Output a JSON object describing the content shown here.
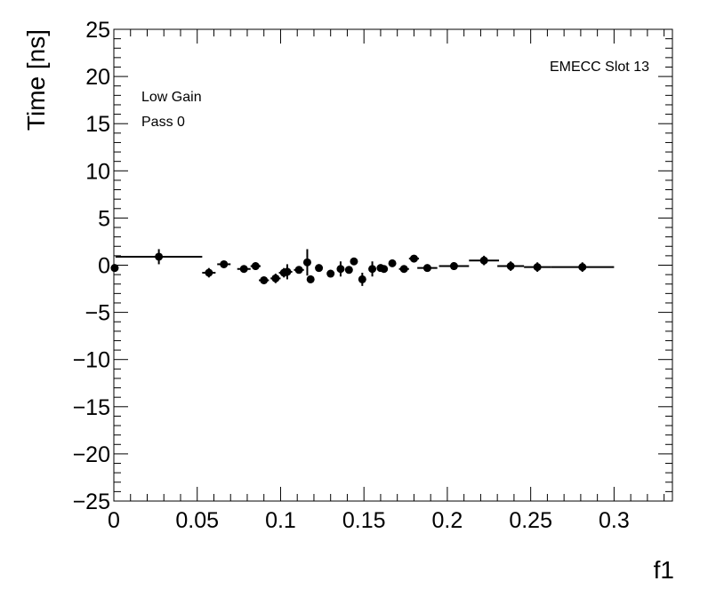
{
  "chart_data": {
    "type": "scatter",
    "title": "",
    "xlabel": "f1",
    "ylabel": "Time [ns]",
    "xlim": [
      0,
      0.335
    ],
    "ylim": [
      -25,
      25
    ],
    "x_ticks": [
      0,
      0.05,
      0.1,
      0.15,
      0.2,
      0.25,
      0.3
    ],
    "x_tick_labels": [
      "0",
      "0.05",
      "0.1",
      "0.15",
      "0.2",
      "0.25",
      "0.3"
    ],
    "y_ticks": [
      -25,
      -20,
      -15,
      -10,
      -5,
      0,
      5,
      10,
      15,
      20,
      25
    ],
    "y_tick_labels": [
      "−25",
      "−20",
      "−15",
      "−10",
      "−5",
      "0",
      "5",
      "10",
      "15",
      "20",
      "25"
    ],
    "grid": false,
    "annotations": {
      "top_right": "EMECC Slot 13",
      "line1": "Low Gain",
      "line2": "Pass 0"
    },
    "points": [
      {
        "x": 0.0005,
        "y": -0.3,
        "xerr": 0.0005,
        "yerr": 0.3
      },
      {
        "x": 0.027,
        "y": 0.9,
        "xerr": 0.026,
        "yerr": 0.8
      },
      {
        "x": 0.057,
        "y": -0.8,
        "xerr": 0.004,
        "yerr": 0.5
      },
      {
        "x": 0.066,
        "y": 0.1,
        "xerr": 0.004,
        "yerr": 0.3
      },
      {
        "x": 0.078,
        "y": -0.4,
        "xerr": 0.004,
        "yerr": 0.3
      },
      {
        "x": 0.085,
        "y": -0.1,
        "xerr": 0.003,
        "yerr": 0.4
      },
      {
        "x": 0.09,
        "y": -1.6,
        "xerr": 0.003,
        "yerr": 0.4
      },
      {
        "x": 0.097,
        "y": -1.4,
        "xerr": 0.003,
        "yerr": 0.5
      },
      {
        "x": 0.102,
        "y": -0.8,
        "xerr": 0.003,
        "yerr": 0.5
      },
      {
        "x": 0.104,
        "y": -0.7,
        "xerr": 0.003,
        "yerr": 0.8
      },
      {
        "x": 0.111,
        "y": -0.5,
        "xerr": 0.003,
        "yerr": 0.3
      },
      {
        "x": 0.116,
        "y": 0.3,
        "xerr": 0.002,
        "yerr": 1.4
      },
      {
        "x": 0.118,
        "y": -1.5,
        "xerr": 0.002,
        "yerr": 0.4
      },
      {
        "x": 0.123,
        "y": -0.3,
        "xerr": 0.002,
        "yerr": 0.3
      },
      {
        "x": 0.13,
        "y": -0.9,
        "xerr": 0.002,
        "yerr": 0.3
      },
      {
        "x": 0.136,
        "y": -0.4,
        "xerr": 0.002,
        "yerr": 0.8
      },
      {
        "x": 0.141,
        "y": -0.5,
        "xerr": 0.002,
        "yerr": 0.4
      },
      {
        "x": 0.144,
        "y": 0.4,
        "xerr": 0.002,
        "yerr": 0.3
      },
      {
        "x": 0.149,
        "y": -1.5,
        "xerr": 0.002,
        "yerr": 0.7
      },
      {
        "x": 0.155,
        "y": -0.4,
        "xerr": 0.002,
        "yerr": 0.8
      },
      {
        "x": 0.16,
        "y": -0.3,
        "xerr": 0.002,
        "yerr": 0.4
      },
      {
        "x": 0.162,
        "y": -0.4,
        "xerr": 0.002,
        "yerr": 0.3
      },
      {
        "x": 0.167,
        "y": 0.2,
        "xerr": 0.002,
        "yerr": 0.3
      },
      {
        "x": 0.174,
        "y": -0.4,
        "xerr": 0.003,
        "yerr": 0.3
      },
      {
        "x": 0.18,
        "y": 0.7,
        "xerr": 0.003,
        "yerr": 0.3
      },
      {
        "x": 0.188,
        "y": -0.3,
        "xerr": 0.006,
        "yerr": 0.3
      },
      {
        "x": 0.204,
        "y": -0.1,
        "xerr": 0.009,
        "yerr": 0.4
      },
      {
        "x": 0.222,
        "y": 0.5,
        "xerr": 0.009,
        "yerr": 0.5
      },
      {
        "x": 0.238,
        "y": -0.1,
        "xerr": 0.008,
        "yerr": 0.5
      },
      {
        "x": 0.254,
        "y": -0.2,
        "xerr": 0.008,
        "yerr": 0.5
      },
      {
        "x": 0.281,
        "y": -0.2,
        "xerr": 0.019,
        "yerr": 0.5
      }
    ]
  }
}
